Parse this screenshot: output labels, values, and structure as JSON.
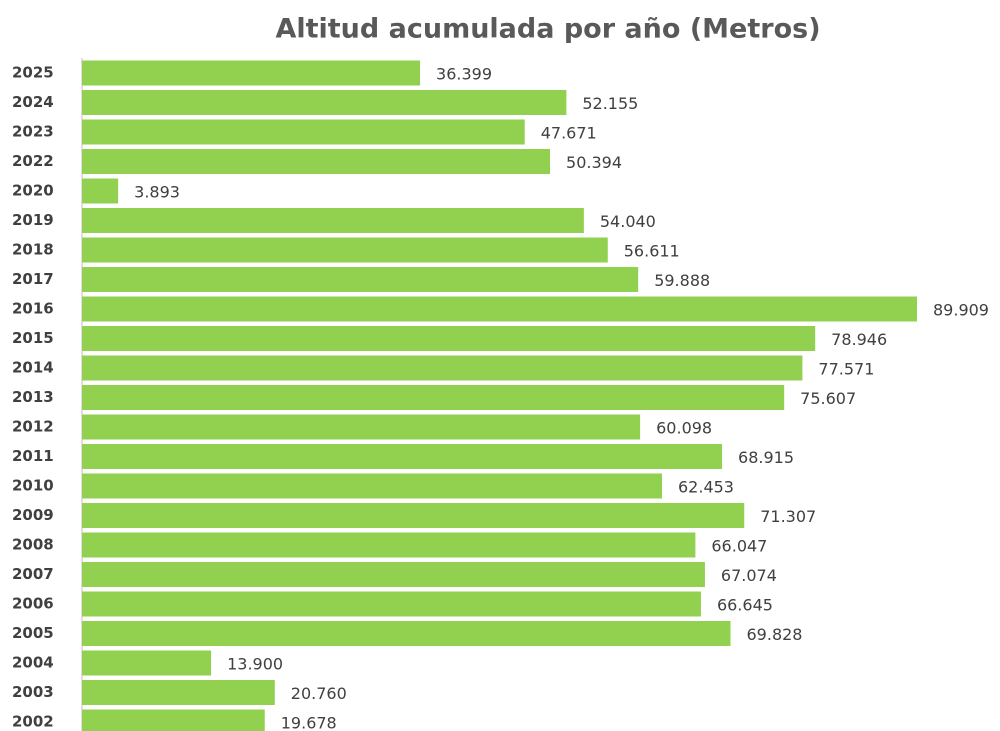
{
  "chart_data": {
    "type": "bar",
    "orientation": "horizontal",
    "title": "Altitud acumulada por año (Metros)",
    "categories": [
      "2025",
      "2024",
      "2023",
      "2022",
      "2020",
      "2019",
      "2018",
      "2017",
      "2016",
      "2015",
      "2014",
      "2013",
      "2012",
      "2011",
      "2010",
      "2009",
      "2008",
      "2007",
      "2006",
      "2005",
      "2004",
      "2003",
      "2002"
    ],
    "values": [
      36399,
      52155,
      47671,
      50394,
      3893,
      54040,
      56611,
      59888,
      89909,
      78946,
      77571,
      75607,
      60098,
      68915,
      62453,
      71307,
      66047,
      67074,
      66645,
      69828,
      13900,
      20760,
      19678
    ],
    "value_labels": [
      "36.399",
      "52.155",
      "47.671",
      "50.394",
      "3.893",
      "54.040",
      "56.611",
      "59.888",
      "89.909",
      "78.946",
      "77.571",
      "75.607",
      "60.098",
      "68.915",
      "62.453",
      "71.307",
      "66.047",
      "67.074",
      "66.645",
      "69.828",
      "13.900",
      "20.760",
      "19.678"
    ],
    "color": "#92d050"
  }
}
